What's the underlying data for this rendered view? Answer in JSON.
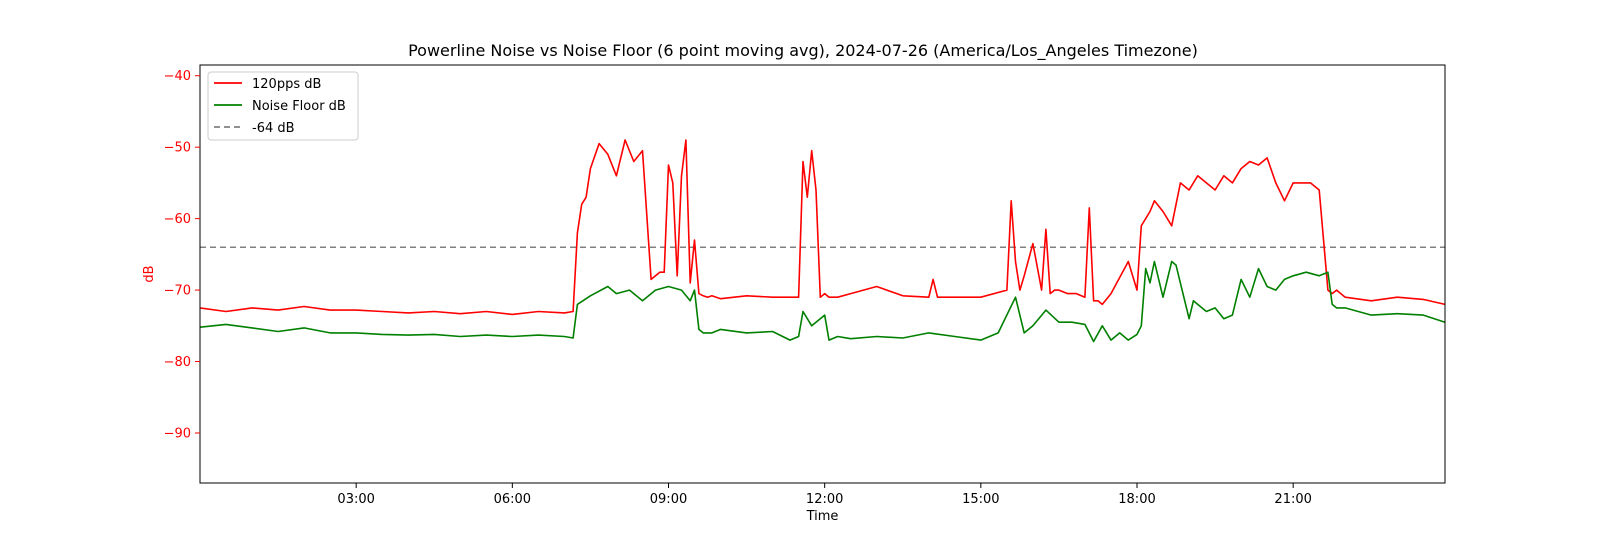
{
  "chart_data": {
    "type": "line",
    "title": "Powerline Noise vs Noise Floor (6 point moving avg), 2024-07-26 (America/Los_Angeles Timezone)",
    "xlabel": "Time",
    "ylabel": "dB",
    "xlim": [
      "00:00",
      "23:55"
    ],
    "ylim": [
      -97,
      -38.5
    ],
    "x_ticks": [
      "03:00",
      "06:00",
      "09:00",
      "12:00",
      "15:00",
      "18:00",
      "21:00"
    ],
    "y_ticks": [
      -40,
      -50,
      -60,
      -70,
      -80,
      -90
    ],
    "y_tick_labels": [
      "−40",
      "−50",
      "−60",
      "−70",
      "−80",
      "−90"
    ],
    "legend_position": "top-left",
    "grid": false,
    "reference_line": {
      "label": "-64 dB",
      "y": -64,
      "color": "#808080",
      "style": "dashed"
    },
    "colors": {
      "y_axis": "#ff0000",
      "x_axis": "#000000"
    },
    "series": [
      {
        "name": "120pps dB",
        "color": "#ff0000",
        "x": [
          "00:00",
          "00:30",
          "01:00",
          "01:30",
          "02:00",
          "02:30",
          "03:00",
          "03:30",
          "04:00",
          "04:30",
          "05:00",
          "05:30",
          "06:00",
          "06:30",
          "07:00",
          "07:10",
          "07:15",
          "07:20",
          "07:25",
          "07:30",
          "07:40",
          "07:50",
          "08:00",
          "08:10",
          "08:20",
          "08:30",
          "08:40",
          "08:50",
          "08:55",
          "09:00",
          "09:05",
          "09:10",
          "09:15",
          "09:20",
          "09:25",
          "09:30",
          "09:35",
          "09:40",
          "09:45",
          "09:50",
          "10:00",
          "10:30",
          "11:00",
          "11:30",
          "11:35",
          "11:40",
          "11:45",
          "11:50",
          "11:55",
          "12:00",
          "12:05",
          "12:15",
          "12:30",
          "13:00",
          "13:30",
          "14:00",
          "14:05",
          "14:10",
          "14:30",
          "15:00",
          "15:30",
          "15:35",
          "15:40",
          "15:45",
          "15:50",
          "16:00",
          "16:10",
          "16:15",
          "16:20",
          "16:25",
          "16:30",
          "16:40",
          "16:50",
          "17:00",
          "17:05",
          "17:10",
          "17:15",
          "17:20",
          "17:30",
          "17:50",
          "18:00",
          "18:05",
          "18:10",
          "18:15",
          "18:20",
          "18:30",
          "18:40",
          "18:50",
          "19:00",
          "19:10",
          "19:20",
          "19:30",
          "19:40",
          "19:50",
          "20:00",
          "20:10",
          "20:20",
          "20:30",
          "20:40",
          "20:50",
          "21:00",
          "21:10",
          "21:20",
          "21:30",
          "21:40",
          "21:45",
          "21:50",
          "22:00",
          "22:30",
          "23:00",
          "23:30",
          "23:55"
        ],
        "values": [
          -72.5,
          -73,
          -72.5,
          -72.8,
          -72.3,
          -72.8,
          -72.8,
          -73,
          -73.2,
          -73,
          -73.3,
          -73,
          -73.4,
          -73,
          -73.2,
          -73,
          -62,
          -58,
          -57,
          -53,
          -49.5,
          -51,
          -54,
          -49,
          -52,
          -50.5,
          -68.5,
          -67.5,
          -67.5,
          -52.5,
          -55,
          -68,
          -54,
          -49,
          -69,
          -63,
          -70.5,
          -70.8,
          -71,
          -70.8,
          -71.2,
          -70.8,
          -71,
          -71,
          -52,
          -57,
          -50.5,
          -56,
          -71,
          -70.5,
          -71,
          -71,
          -70.5,
          -69.5,
          -70.8,
          -71,
          -68.5,
          -71,
          -71,
          -71,
          -70,
          -57.5,
          -66,
          -70,
          -68,
          -63.5,
          -70,
          -61.5,
          -70.5,
          -70,
          -70,
          -70.5,
          -70.5,
          -71,
          -58.5,
          -71.5,
          -71.5,
          -72,
          -70.5,
          -66,
          -70,
          -61,
          -60,
          -59,
          -57.5,
          -59,
          -61,
          -55,
          -56,
          -54,
          -55,
          -56,
          -54,
          -55,
          -53,
          -52,
          -52.5,
          -51.5,
          -55,
          -57.5,
          -55,
          -55,
          -55,
          -56,
          -70,
          -70.5,
          -70,
          -71,
          -71.5,
          -71,
          -71.3,
          -72
        ]
      },
      {
        "name": "Noise Floor dB",
        "color": "#008000",
        "x": [
          "00:00",
          "00:30",
          "01:00",
          "01:30",
          "02:00",
          "02:30",
          "03:00",
          "03:30",
          "04:00",
          "04:30",
          "05:00",
          "05:30",
          "06:00",
          "06:30",
          "07:00",
          "07:10",
          "07:15",
          "07:30",
          "07:50",
          "08:00",
          "08:15",
          "08:30",
          "08:45",
          "09:00",
          "09:15",
          "09:25",
          "09:30",
          "09:35",
          "09:40",
          "09:50",
          "10:00",
          "10:30",
          "11:00",
          "11:20",
          "11:30",
          "11:35",
          "11:45",
          "12:00",
          "12:05",
          "12:15",
          "12:30",
          "13:00",
          "13:30",
          "14:00",
          "14:30",
          "15:00",
          "15:20",
          "15:40",
          "15:50",
          "16:00",
          "16:15",
          "16:30",
          "16:45",
          "17:00",
          "17:10",
          "17:20",
          "17:30",
          "17:40",
          "17:50",
          "18:00",
          "18:05",
          "18:10",
          "18:15",
          "18:20",
          "18:30",
          "18:40",
          "18:45",
          "19:00",
          "19:05",
          "19:10",
          "19:20",
          "19:30",
          "19:40",
          "19:50",
          "20:00",
          "20:10",
          "20:20",
          "20:30",
          "20:40",
          "20:50",
          "21:00",
          "21:15",
          "21:30",
          "21:40",
          "21:45",
          "21:50",
          "22:00",
          "22:30",
          "23:00",
          "23:30",
          "23:55"
        ],
        "values": [
          -75.2,
          -74.8,
          -75.3,
          -75.8,
          -75.3,
          -76,
          -76,
          -76.2,
          -76.3,
          -76.2,
          -76.5,
          -76.3,
          -76.5,
          -76.3,
          -76.5,
          -76.7,
          -72,
          -70.8,
          -69.5,
          -70.5,
          -70,
          -71.5,
          -70,
          -69.5,
          -70,
          -71.5,
          -70,
          -75.5,
          -76,
          -76,
          -75.5,
          -76,
          -75.8,
          -77,
          -76.5,
          -73,
          -75,
          -73.5,
          -77,
          -76.5,
          -76.8,
          -76.5,
          -76.7,
          -76,
          -76.5,
          -77,
          -76,
          -71,
          -76,
          -75,
          -72.8,
          -74.5,
          -74.5,
          -74.8,
          -77.2,
          -75,
          -77,
          -76,
          -77,
          -76.2,
          -75,
          -67,
          -69,
          -66,
          -71,
          -66,
          -66.5,
          -74,
          -71.5,
          -72,
          -73,
          -72.5,
          -74,
          -73.5,
          -68.5,
          -71,
          -67,
          -69.5,
          -70,
          -68.5,
          -68,
          -67.5,
          -68,
          -67.5,
          -72,
          -72.5,
          -72.5,
          -73.5,
          -73.3,
          -73.5,
          -74.5
        ]
      }
    ]
  }
}
